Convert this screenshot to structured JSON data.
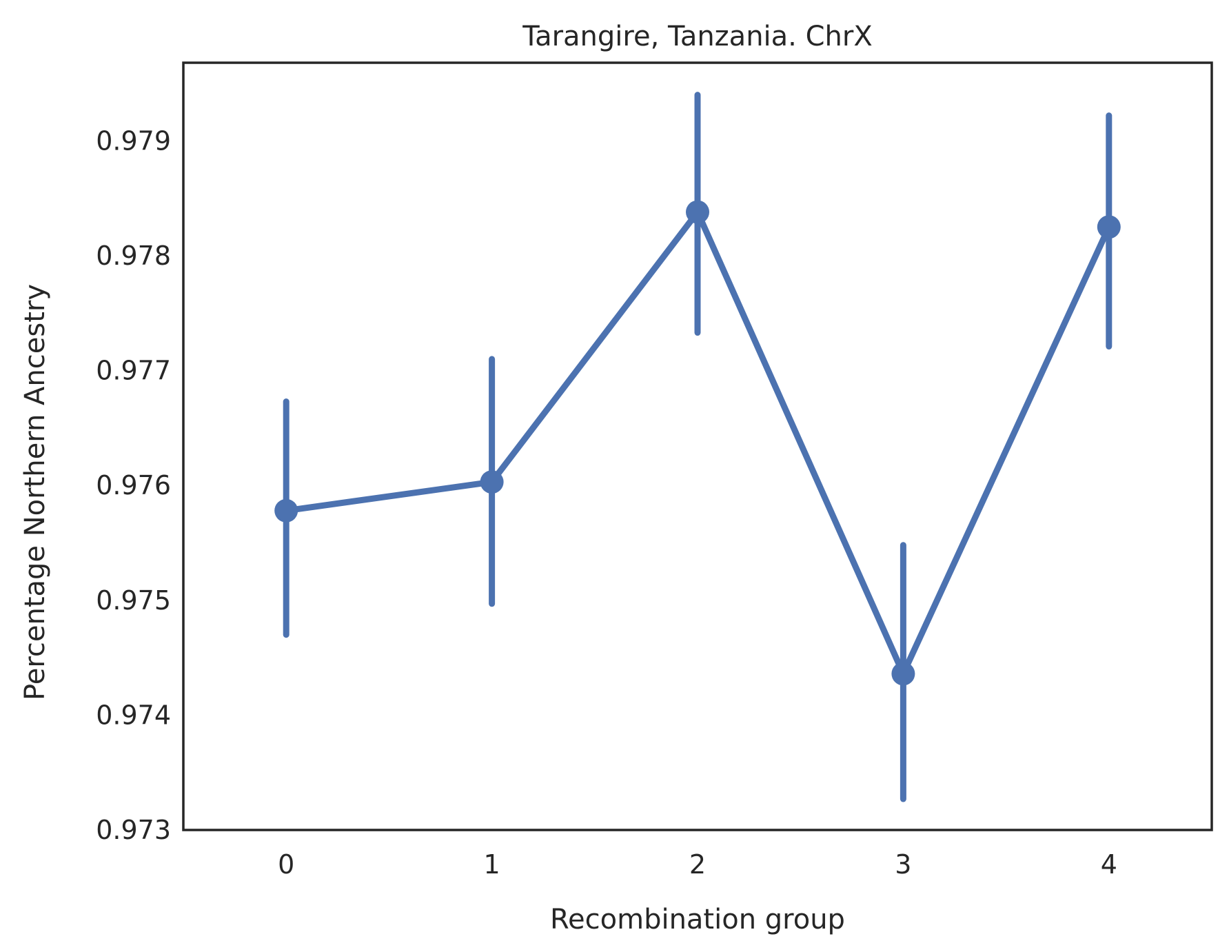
{
  "chart_data": {
    "type": "line",
    "title": "Tarangire, Tanzania. ChrX",
    "xlabel": "Recombination group",
    "ylabel": "Percentage Northern Ancestry",
    "categories": [
      "0",
      "1",
      "2",
      "3",
      "4"
    ],
    "series": [
      {
        "values": [
          0.97578,
          0.97603,
          0.97838,
          0.97436,
          0.97825
        ],
        "err_low": [
          0.9747,
          0.97497,
          0.97733,
          0.97327,
          0.97721
        ],
        "err_high": [
          0.97673,
          0.9771,
          0.9794,
          0.97548,
          0.97922
        ],
        "color": "#4c72b0"
      }
    ],
    "yticks": [
      0.973,
      0.974,
      0.975,
      0.976,
      0.977,
      0.978,
      0.979
    ],
    "ytick_labels": [
      "0.973",
      "0.974",
      "0.975",
      "0.976",
      "0.977",
      "0.978",
      "0.979"
    ],
    "ylim": [
      0.973,
      0.97968
    ],
    "xlim": [
      -0.5,
      4.5
    ],
    "grid": false,
    "axis_color": "#262626"
  }
}
